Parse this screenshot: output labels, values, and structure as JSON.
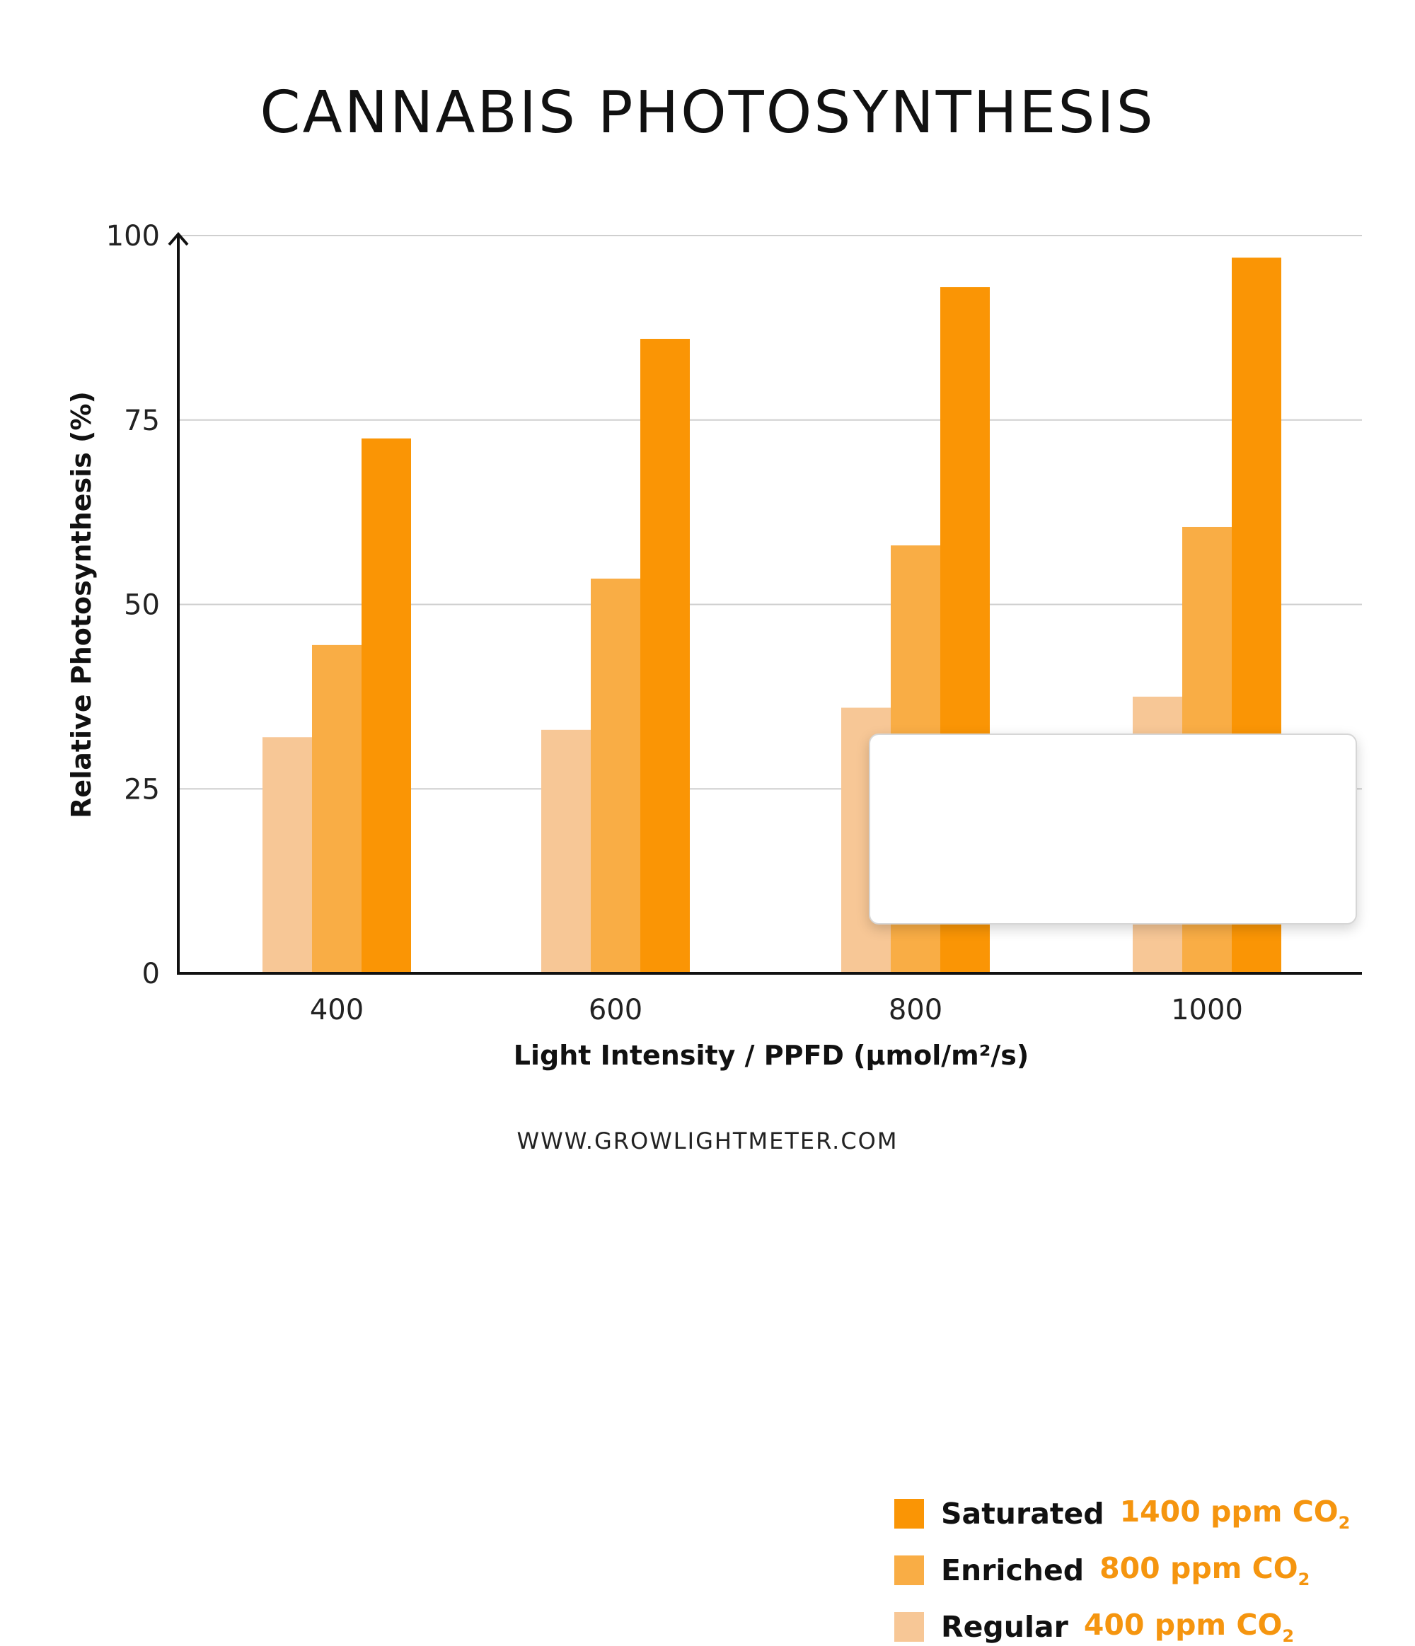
{
  "title": "CANNABIS PHOTOSYNTHESIS",
  "footer": "WWW.GROWLIGHTMETER.COM",
  "chart_data": {
    "type": "bar",
    "title": "CANNABIS PHOTOSYNTHESIS",
    "xlabel": "Light Intensity / PPFD (µmol/m²/s)",
    "ylabel": "Relative Photosynthesis (%)",
    "categories": [
      "400",
      "600",
      "800",
      "1000"
    ],
    "ylim": [
      0,
      100
    ],
    "yticks": [
      "0",
      "25",
      "50",
      "75",
      "100"
    ],
    "grid": true,
    "series": [
      {
        "name": "Regular",
        "concentration": "400 ppm CO",
        "subscript": "2",
        "color": "#f7c796",
        "values": [
          32,
          33,
          36,
          37.5
        ]
      },
      {
        "name": "Enriched",
        "concentration": "800 ppm CO",
        "subscript": "2",
        "color": "#f9ad45",
        "values": [
          44.5,
          53.5,
          58,
          60.5
        ]
      },
      {
        "name": "Saturated",
        "concentration": "1400 ppm CO",
        "subscript": "2",
        "color": "#fa9505",
        "values": [
          72.5,
          86,
          93,
          97
        ]
      }
    ],
    "legend_position": "bottom-right",
    "legend_order": [
      2,
      1,
      0
    ]
  }
}
